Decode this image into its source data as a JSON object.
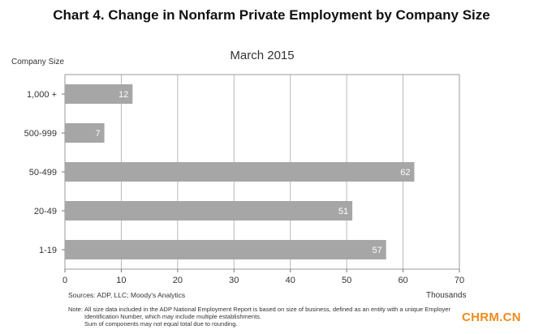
{
  "title": "Chart 4. Change in Nonfarm Private Employment by Company Size",
  "source": "Sources: ADP, LLC; Moody's Analytics",
  "note": {
    "label": "Note:",
    "lines": [
      "All size data included in the ADP National Employment Report is based on size of business, defined as an entity with a unique Employer",
      "Identification Number, which may include multiple establishments.",
      "Sum of components may not equal total due to rounding."
    ]
  },
  "watermark": "CHRM.CN",
  "chart_data": {
    "type": "bar",
    "orientation": "horizontal",
    "title": "March 2015",
    "ylabel": "Company Size",
    "xlabel": "Thousands",
    "categories": [
      "1,000 +",
      "500-999",
      "50-499",
      "20-49",
      "1-19"
    ],
    "values": [
      12,
      7,
      62,
      51,
      57
    ],
    "data_labels": [
      "12",
      "7",
      "62",
      "51",
      "57"
    ],
    "xlim": [
      0,
      70
    ],
    "xticks": [
      0,
      10,
      20,
      30,
      40,
      50,
      60,
      70
    ],
    "grid": true,
    "bar_color": "#a6a6a6",
    "label_color": "#ffffff"
  }
}
